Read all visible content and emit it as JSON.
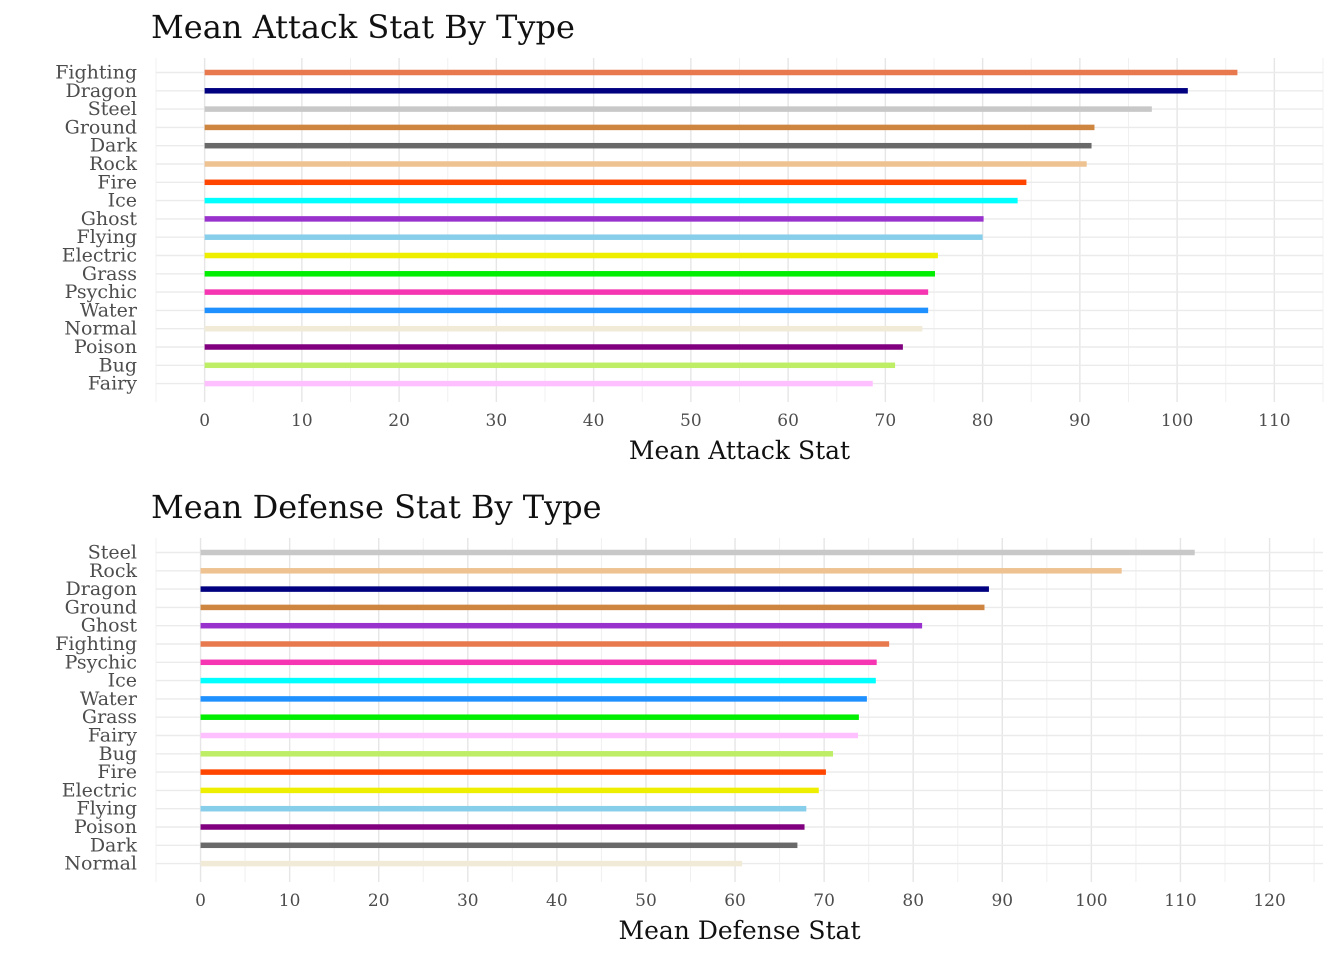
{
  "chart_data": [
    {
      "type": "bar",
      "orientation": "horizontal",
      "title": "Mean Attack Stat By Type",
      "xlabel": "Mean Attack Stat",
      "ylabel": "",
      "xlim": [
        -5,
        115
      ],
      "ticks": [
        0,
        10,
        20,
        30,
        40,
        50,
        60,
        70,
        80,
        90,
        100,
        110
      ],
      "grid": true,
      "legend": "none",
      "categories": [
        "Fighting",
        "Dragon",
        "Steel",
        "Ground",
        "Dark",
        "Rock",
        "Fire",
        "Ice",
        "Ghost",
        "Flying",
        "Electric",
        "Grass",
        "Psychic",
        "Water",
        "Normal",
        "Poison",
        "Bug",
        "Fairy"
      ],
      "values": [
        106.2,
        101.1,
        97.4,
        91.5,
        91.2,
        90.7,
        84.5,
        83.6,
        80.1,
        80.0,
        75.4,
        75.1,
        74.4,
        74.4,
        73.8,
        71.8,
        71.0,
        68.7
      ],
      "colors": [
        "#E8784E",
        "#000080",
        "#C8C8C8",
        "#CD853F",
        "#696969",
        "#EEC291",
        "#FF4500",
        "#00FFFF",
        "#9932CC",
        "#87CEEB",
        "#EEEE00",
        "#00EE00",
        "#F535B1",
        "#1E90FF",
        "#F0EAD6",
        "#800080",
        "#BDEE66",
        "#FFC0FF"
      ]
    },
    {
      "type": "bar",
      "orientation": "horizontal",
      "title": "Mean Defense Stat By Type",
      "xlabel": "Mean Defense Stat",
      "ylabel": "",
      "xlim": [
        -5,
        126
      ],
      "ticks": [
        0,
        10,
        20,
        30,
        40,
        50,
        60,
        70,
        80,
        90,
        100,
        110,
        120
      ],
      "grid": true,
      "legend": "none",
      "categories": [
        "Steel",
        "Rock",
        "Dragon",
        "Ground",
        "Ghost",
        "Fighting",
        "Psychic",
        "Ice",
        "Water",
        "Grass",
        "Fairy",
        "Bug",
        "Fire",
        "Electric",
        "Flying",
        "Poison",
        "Dark",
        "Normal"
      ],
      "values": [
        111.6,
        103.4,
        88.5,
        88.0,
        81.0,
        77.3,
        75.9,
        75.8,
        74.8,
        73.9,
        73.8,
        71.0,
        70.2,
        69.4,
        68.0,
        67.8,
        67.0,
        60.8
      ],
      "colors": [
        "#C8C8C8",
        "#EEC291",
        "#000080",
        "#CD853F",
        "#9932CC",
        "#E8784E",
        "#F535B1",
        "#00FFFF",
        "#1E90FF",
        "#00EE00",
        "#FFC0FF",
        "#BDEE66",
        "#FF4500",
        "#EEEE00",
        "#87CEEB",
        "#800080",
        "#696969",
        "#F0EAD6"
      ]
    }
  ]
}
